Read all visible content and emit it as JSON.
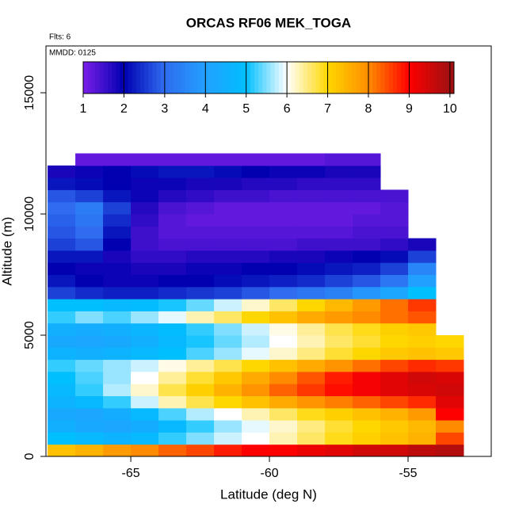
{
  "chart_data": {
    "type": "heatmap",
    "title": "ORCAS RF06 MEK_TOGA",
    "annotations": [
      "Flts: 6",
      "MMDD: 0125"
    ],
    "x_label": "Latitude (deg N)",
    "y_label": "Altitude (m)",
    "xlim": [
      -68.06,
      -52
    ],
    "xticks": [
      -65,
      -60,
      -55
    ],
    "ylim": [
      0,
      16930
    ],
    "yticks": [
      0,
      5000,
      10000,
      15000
    ],
    "x": [
      -67.5,
      -66.5,
      -65.5,
      -64.5,
      -63.5,
      -62.5,
      -61.5,
      -60.5,
      -59.5,
      -58.5,
      -57.5,
      -56.5,
      -55.5,
      -54.5,
      -53.5
    ],
    "y": [
      250,
      750,
      1250,
      1750,
      2250,
      2750,
      3250,
      3750,
      4250,
      4750,
      5250,
      5750,
      6250,
      6750,
      7250,
      7750,
      8250,
      8750,
      9250,
      9750,
      10250,
      10750,
      11250,
      11750,
      12250
    ],
    "z": [
      [
        7.3,
        7.5,
        7.8,
        8,
        8.3,
        8.5,
        8.8,
        9,
        9,
        9.2,
        9.3,
        9.5,
        9.5,
        9.7,
        9.8
      ],
      [
        5,
        4.8,
        4.6,
        4.8,
        5.2,
        5.5,
        5.8,
        6,
        6.3,
        6.6,
        6.9,
        7.1,
        7.3,
        7.5,
        8.5
      ],
      [
        4.5,
        4.3,
        4.2,
        4.4,
        4.8,
        5.2,
        5.6,
        5.9,
        6.2,
        6.5,
        6.8,
        7,
        7.2,
        7.4,
        8
      ],
      [
        4.3,
        4.2,
        4.4,
        4.8,
        5.3,
        5.7,
        6,
        6.3,
        6.6,
        6.9,
        7.1,
        7.3,
        7.5,
        7.8,
        9
      ],
      [
        4.6,
        4.8,
        5.2,
        5.8,
        6.3,
        6.7,
        7,
        7.3,
        7.6,
        7.9,
        8.1,
        8.3,
        8.5,
        8.7,
        9.3
      ],
      [
        4.8,
        5.2,
        5.7,
        6.2,
        6.7,
        7.1,
        7.5,
        7.9,
        8.3,
        8.6,
        8.9,
        9.1,
        9.3,
        9.4,
        9.5
      ],
      [
        5,
        5.3,
        5.6,
        6,
        6.4,
        6.8,
        7.2,
        7.6,
        8,
        8.4,
        8.8,
        9.1,
        9.3,
        9.5,
        9.4
      ],
      [
        5.2,
        5.4,
        5.6,
        5.8,
        6.1,
        6.4,
        6.7,
        7,
        7.3,
        7.6,
        7.9,
        8.2,
        8.5,
        8.7,
        8.6
      ],
      [
        4.6,
        4.5,
        4.6,
        4.8,
        5,
        5.3,
        5.6,
        5.9,
        6.2,
        6.5,
        6.8,
        7,
        7.2,
        7.3,
        7.2
      ],
      [
        4.3,
        4.2,
        4.3,
        4.5,
        4.8,
        5.1,
        5.4,
        5.7,
        6,
        6.3,
        6.6,
        6.8,
        7,
        7.1,
        7
      ],
      [
        4.5,
        4.4,
        4.5,
        4.7,
        4.9,
        5.2,
        5.5,
        5.8,
        6.1,
        6.4,
        6.7,
        6.9,
        7.1,
        7.2,
        null
      ],
      [
        5.2,
        5.5,
        5.3,
        5.6,
        5.9,
        6.3,
        6.6,
        7,
        7.3,
        7.6,
        7.8,
        8,
        8.2,
        8.4,
        null
      ],
      [
        5,
        5,
        4.8,
        4.9,
        5.1,
        5.4,
        5.8,
        6.2,
        6.6,
        7,
        7.4,
        7.8,
        8.2,
        8.6,
        null
      ],
      [
        2.6,
        2.4,
        2.3,
        2.3,
        2.4,
        2.5,
        2.6,
        2.8,
        3,
        3.2,
        3.4,
        3.8,
        4.2,
        5,
        null
      ],
      [
        2.2,
        2,
        1.9,
        1.9,
        2,
        2,
        2.1,
        2.2,
        2.3,
        2.4,
        2.6,
        2.8,
        3.2,
        4,
        null
      ],
      [
        2,
        1.9,
        1.9,
        1.8,
        1.8,
        1.9,
        1.9,
        2,
        2,
        2.1,
        2.2,
        2.3,
        2.6,
        3.5,
        null
      ],
      [
        2.2,
        2.2,
        1.8,
        1.6,
        1.6,
        1.7,
        1.7,
        1.7,
        1.8,
        1.8,
        1.9,
        2,
        2.1,
        2.6,
        null
      ],
      [
        2.6,
        2.8,
        2,
        1.5,
        1.4,
        1.4,
        1.4,
        1.4,
        1.4,
        1.5,
        1.5,
        1.5,
        1.6,
        1.8,
        null
      ],
      [
        2.8,
        3,
        2.2,
        1.5,
        1.3,
        1.3,
        1.3,
        1.3,
        1.3,
        1.3,
        1.3,
        1.4,
        1.4,
        null,
        null
      ],
      [
        2.9,
        3.2,
        2.4,
        1.6,
        1.3,
        1.2,
        1.2,
        1.2,
        1.2,
        1.2,
        1.2,
        1.3,
        1.3,
        null,
        null
      ],
      [
        3,
        3.3,
        2.6,
        1.7,
        1.4,
        1.3,
        1.2,
        1.2,
        1.2,
        1.2,
        1.2,
        1.2,
        1.3,
        null,
        null
      ],
      [
        2.8,
        2.6,
        2.2,
        1.9,
        1.7,
        1.6,
        1.5,
        1.5,
        1.4,
        1.4,
        1.4,
        1.4,
        1.4,
        null,
        null
      ],
      [
        2.2,
        2.1,
        2,
        1.9,
        1.9,
        1.8,
        1.8,
        1.7,
        1.7,
        1.6,
        1.6,
        1.6,
        null,
        null,
        null
      ],
      [
        1.8,
        1.9,
        2,
        2.1,
        2.2,
        2.2,
        2.1,
        2,
        1.9,
        1.9,
        1.8,
        1.8,
        null,
        null,
        null
      ],
      [
        null,
        1.2,
        1.2,
        1.2,
        1.2,
        1.2,
        1.2,
        1.2,
        1.2,
        1.2,
        1.3,
        1.3,
        null,
        null,
        null
      ]
    ],
    "colorbar": {
      "range": [
        1,
        10.1
      ],
      "ticks": [
        1,
        2,
        3,
        4,
        5,
        6,
        7,
        8,
        9,
        10
      ]
    },
    "colorscale": [
      [
        1,
        "#7b1fe8"
      ],
      [
        2,
        "#0000b0"
      ],
      [
        3,
        "#2f6cf0"
      ],
      [
        4,
        "#22a0ff"
      ],
      [
        5,
        "#00bfff"
      ],
      [
        6,
        "#ffffff"
      ],
      [
        7,
        "#ffd700"
      ],
      [
        8,
        "#ff8c00"
      ],
      [
        9,
        "#ff0000"
      ],
      [
        10,
        "#a01010"
      ]
    ]
  }
}
